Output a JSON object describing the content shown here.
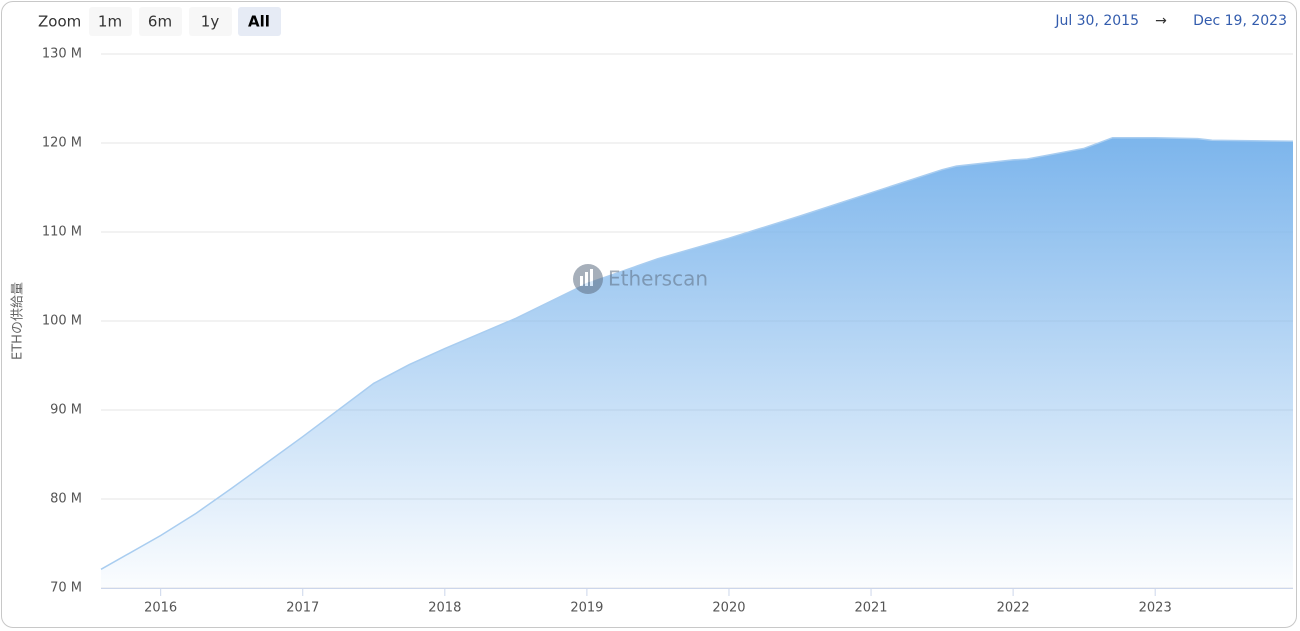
{
  "chart_data": {
    "type": "area",
    "y_label": "ETHの供給量",
    "zoom": {
      "label": "Zoom",
      "buttons": [
        "1m",
        "6m",
        "1y",
        "All"
      ]
    },
    "range": {
      "from": "Jul 30, 2015",
      "arrow": "→",
      "to": "Dec 19, 2023"
    },
    "watermark": "Etherscan",
    "x": [
      2015.58,
      2016.0,
      2016.25,
      2016.5,
      2017.0,
      2017.5,
      2017.75,
      2018.0,
      2018.5,
      2019.0,
      2019.5,
      2020.0,
      2020.5,
      2021.0,
      2021.5,
      2021.6,
      2022.0,
      2022.1,
      2022.5,
      2022.7,
      2023.0,
      2023.3,
      2023.4,
      2023.97
    ],
    "values": [
      72.1,
      75.9,
      78.4,
      81.2,
      87.0,
      93.0,
      95.1,
      96.9,
      100.3,
      104.2,
      107.0,
      109.3,
      111.8,
      114.4,
      117.0,
      117.4,
      118.1,
      118.2,
      119.4,
      120.6,
      120.6,
      120.5,
      120.3,
      120.2
    ],
    "color": "#7cb5ec",
    "line_color": "#a9cdf0",
    "xlim": [
      2015.58,
      2023.97
    ],
    "xticks": [
      2016,
      2017,
      2018,
      2019,
      2020,
      2021,
      2022,
      2023
    ],
    "ylim": [
      70,
      130
    ],
    "yticks": [
      {
        "value": 70,
        "label": "70 M"
      },
      {
        "value": 80,
        "label": "80 M"
      },
      {
        "value": 90,
        "label": "90 M"
      },
      {
        "value": 100,
        "label": "100 M"
      },
      {
        "value": 110,
        "label": "110 M"
      },
      {
        "value": 120,
        "label": "120 M"
      },
      {
        "value": 130,
        "label": "130 M"
      }
    ],
    "grid": true
  }
}
